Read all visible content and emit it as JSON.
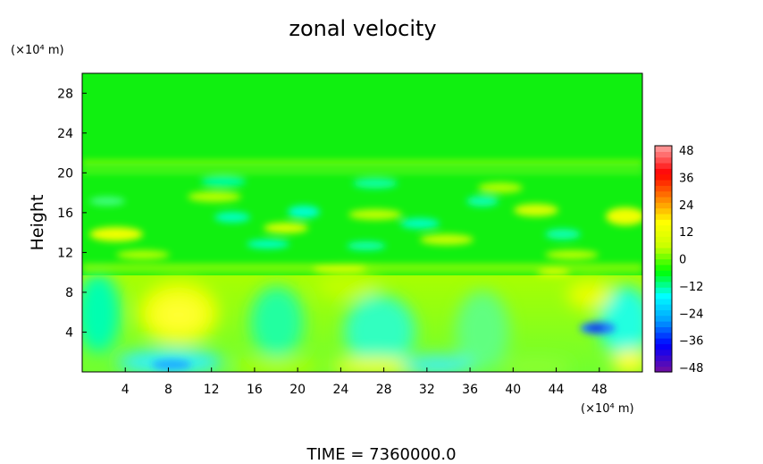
{
  "chart_data": {
    "type": "heatmap",
    "title": "zonal velocity",
    "xlabel": "",
    "ylabel": "Height",
    "x_unit": "(×10⁴ m)",
    "y_unit": "(×10⁴ m)",
    "xlim": [
      0,
      52
    ],
    "ylim": [
      0,
      30
    ],
    "x_ticks": [
      4,
      8,
      12,
      16,
      20,
      24,
      28,
      32,
      36,
      40,
      44,
      48
    ],
    "y_ticks": [
      4,
      8,
      12,
      16,
      20,
      24,
      28
    ],
    "x_tick_labels": [
      "4",
      "8",
      "12",
      "16",
      "20",
      "24",
      "28",
      "32",
      "36",
      "40",
      "44",
      "48"
    ],
    "y_tick_labels": [
      "4",
      "8",
      "12",
      "16",
      "20",
      "24",
      "28"
    ],
    "colorbar": {
      "ticks": [
        48,
        36,
        24,
        12,
        0,
        -12,
        -24,
        -36,
        -48
      ],
      "tick_labels": [
        "48",
        "36",
        "24",
        "12",
        "0",
        "−12",
        "−24",
        "−36",
        "−48"
      ],
      "range": [
        -48,
        48
      ],
      "colors": [
        "#6a0da8",
        "#0000ff",
        "#00a0ff",
        "#00ffff",
        "#00ff00",
        "#c8ff00",
        "#ffff00",
        "#ff8000",
        "#ff0000",
        "#ff9090"
      ]
    },
    "field_features": [
      {
        "x": 8.5,
        "y": 5.5,
        "value": 12
      },
      {
        "x": 8.5,
        "y": 0.8,
        "value": -18
      },
      {
        "x": 46.5,
        "y": 4.3,
        "value": -28
      },
      {
        "x": 4,
        "y": 13.8,
        "value": 18
      },
      {
        "x": 50,
        "y": 15.8,
        "value": 16
      },
      {
        "x": 26,
        "y": 1.2,
        "value": 8
      },
      {
        "x": 25,
        "y": 4.5,
        "value": -8
      }
    ],
    "grid": false,
    "legend": "colorbar-right"
  },
  "footer": {
    "time_text": "TIME  =  7360000.0"
  }
}
